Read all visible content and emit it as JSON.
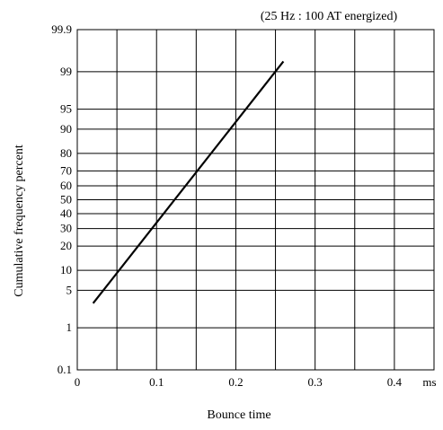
{
  "chart_data": {
    "type": "line",
    "title": "",
    "subtitle": "(25 Hz : 100 AT energized)",
    "xlabel": "Bounce time",
    "ylabel": "Cumulative frequency percent",
    "x_unit": "ms",
    "xlim": [
      0,
      0.45
    ],
    "x_ticks": [
      0,
      0.1,
      0.2,
      0.3,
      0.4
    ],
    "x_tick_labels": [
      "0",
      "0.1",
      "0.2",
      "0.3",
      "0.4"
    ],
    "x_gridlines": [
      0.05,
      0.1,
      0.15,
      0.2,
      0.25,
      0.3,
      0.35,
      0.4,
      0.45
    ],
    "y_scale": "probability",
    "ylim": [
      0.1,
      99.9
    ],
    "y_ticks": [
      0.1,
      1,
      5,
      10,
      20,
      30,
      40,
      50,
      60,
      70,
      80,
      90,
      95,
      99,
      99.9
    ],
    "y_tick_labels": [
      "0.1",
      "1",
      "5",
      "10",
      "20",
      "30",
      "40",
      "50",
      "60",
      "70",
      "80",
      "90",
      "95",
      "99",
      "99.9"
    ],
    "grid": true,
    "series": [
      {
        "x": [
          0.02,
          0.26
        ],
        "y": [
          3,
          99.4
        ]
      }
    ]
  }
}
